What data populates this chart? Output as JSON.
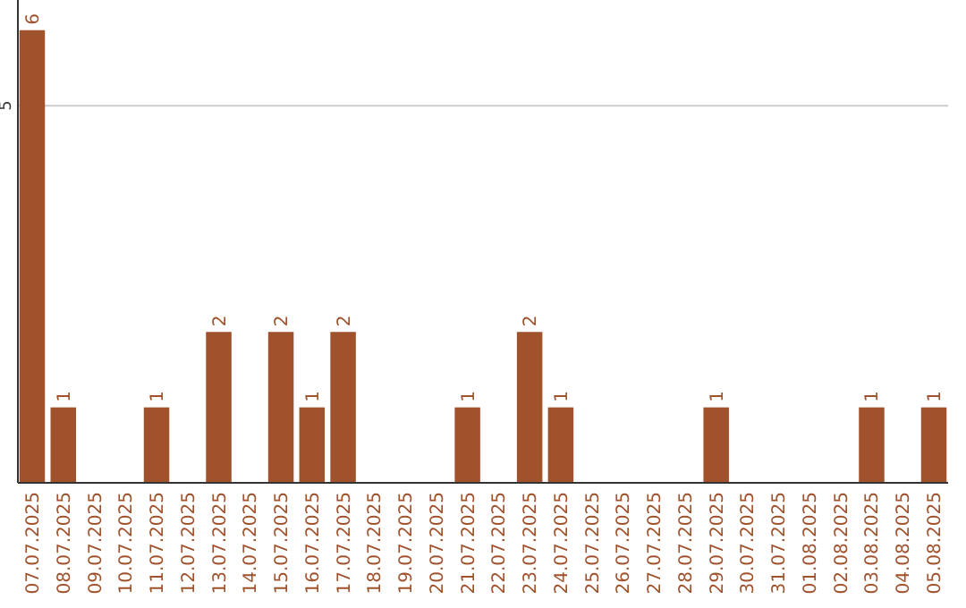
{
  "chart_data": {
    "type": "bar",
    "categories": [
      "07.07.2025",
      "08.07.2025",
      "09.07.2025",
      "10.07.2025",
      "11.07.2025",
      "12.07.2025",
      "13.07.2025",
      "14.07.2025",
      "15.07.2025",
      "16.07.2025",
      "17.07.2025",
      "18.07.2025",
      "19.07.2025",
      "20.07.2025",
      "21.07.2025",
      "22.07.2025",
      "23.07.2025",
      "24.07.2025",
      "25.07.2025",
      "26.07.2025",
      "27.07.2025",
      "28.07.2025",
      "29.07.2025",
      "30.07.2025",
      "31.07.2025",
      "01.08.2025",
      "02.08.2025",
      "03.08.2025",
      "04.08.2025",
      "05.08.2025"
    ],
    "values": [
      6,
      1,
      0,
      0,
      1,
      0,
      2,
      0,
      2,
      1,
      2,
      0,
      0,
      0,
      1,
      0,
      2,
      1,
      0,
      0,
      0,
      0,
      1,
      0,
      0,
      0,
      0,
      1,
      0,
      1
    ],
    "value_labels": [
      "6",
      "1",
      null,
      null,
      "1",
      null,
      "2",
      null,
      "2",
      "1",
      "2",
      null,
      null,
      null,
      "1",
      null,
      "2",
      "1",
      null,
      null,
      null,
      null,
      "1",
      null,
      null,
      null,
      null,
      "1",
      null,
      "1"
    ],
    "color": "#a0522d",
    "ylim": [
      0,
      6.4
    ],
    "yticks": [
      5
    ],
    "grid": "y"
  }
}
